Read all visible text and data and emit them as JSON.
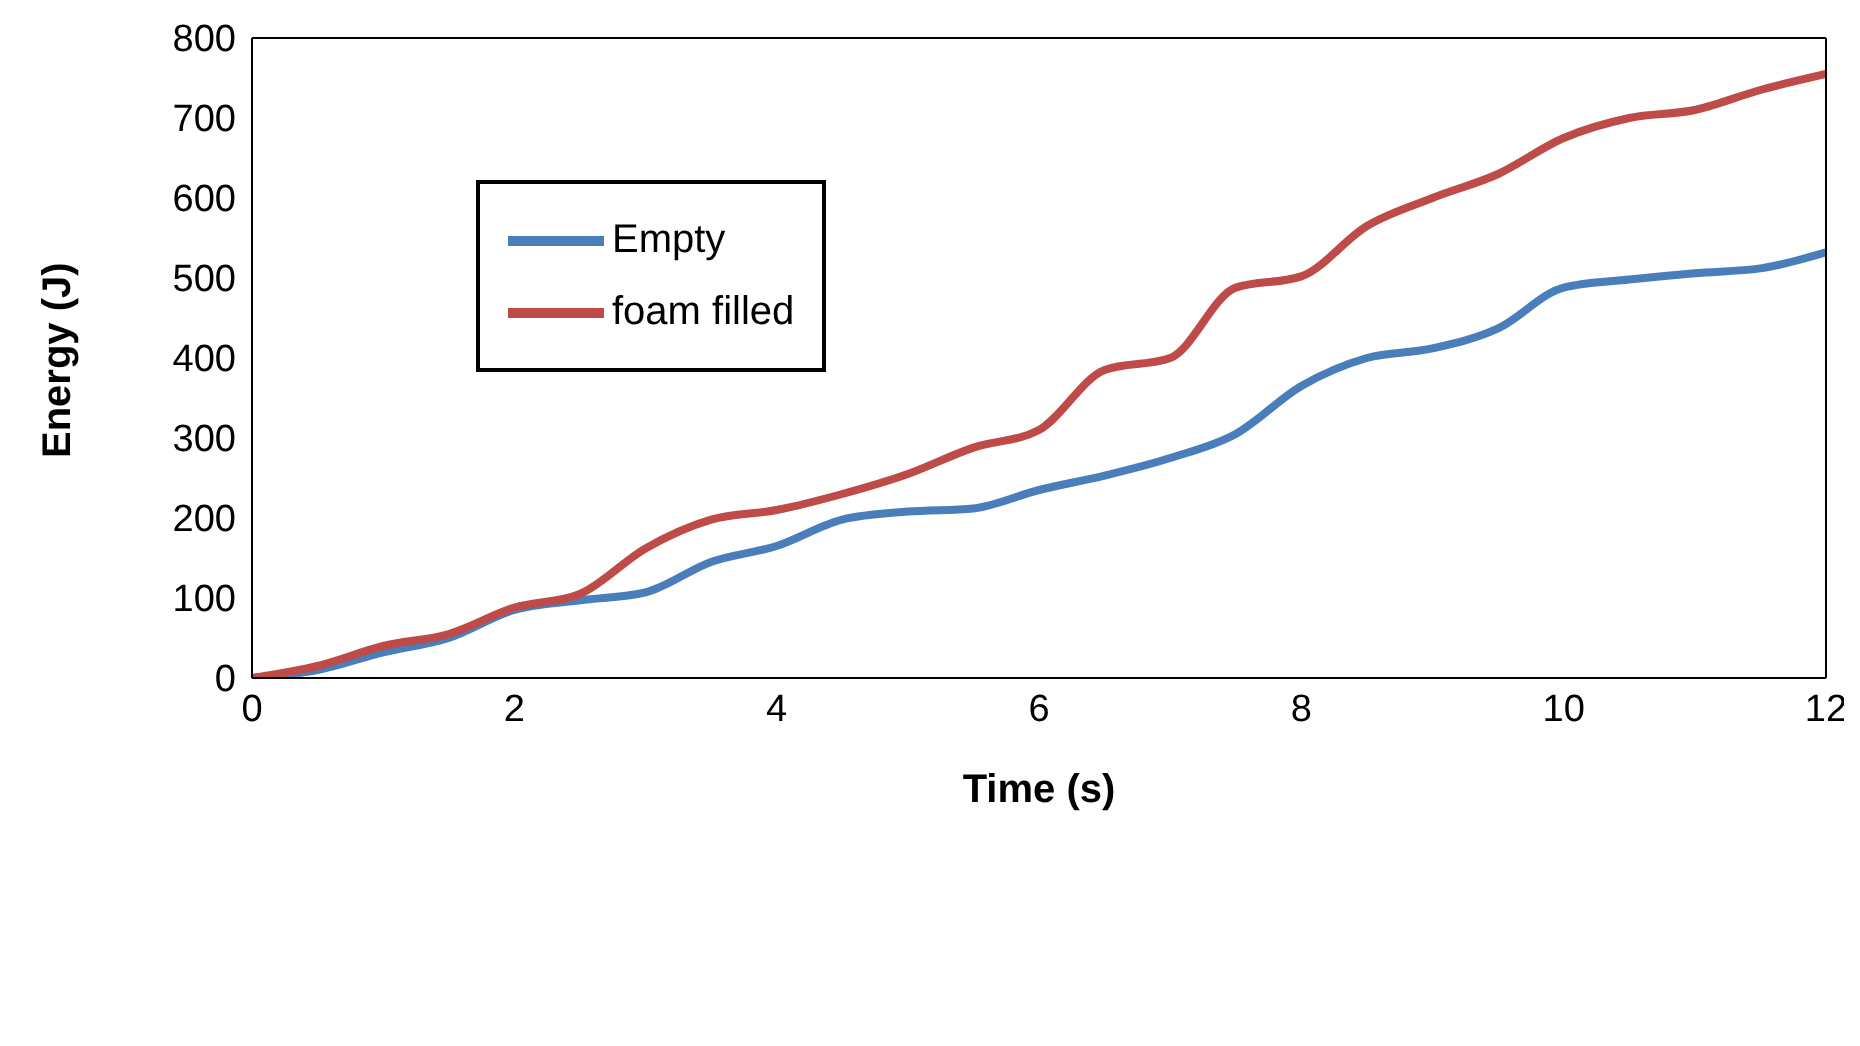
{
  "chart_data": {
    "type": "line",
    "xlabel": "Time (s)",
    "ylabel": "Energy (J)",
    "x": [
      0,
      0.5,
      1,
      1.5,
      2,
      2.5,
      3,
      3.5,
      4,
      4.5,
      5,
      5.5,
      6,
      6.5,
      7,
      7.5,
      8,
      8.5,
      9,
      9.5,
      10,
      10.5,
      11,
      11.5,
      12
    ],
    "series": [
      {
        "name": "Empty",
        "color": "#4a7ebb",
        "values": [
          0,
          10,
          32,
          50,
          85,
          97,
          107,
          145,
          165,
          198,
          208,
          212,
          235,
          253,
          275,
          305,
          365,
          400,
          412,
          437,
          488,
          498,
          506,
          512,
          532
        ]
      },
      {
        "name": "foam filled",
        "color": "#be4b48",
        "values": [
          0,
          15,
          40,
          55,
          88,
          105,
          162,
          198,
          210,
          230,
          255,
          288,
          310,
          385,
          400,
          488,
          502,
          565,
          600,
          630,
          675,
          700,
          710,
          735,
          755
        ]
      }
    ],
    "xlim": [
      0,
      12
    ],
    "xticks": [
      0,
      2,
      4,
      6,
      8,
      10,
      12
    ],
    "ylim": [
      0,
      800
    ],
    "yticks": [
      0,
      100,
      200,
      300,
      400,
      500,
      600,
      700,
      800
    ],
    "grid": false,
    "legend": "top left",
    "marker": "none",
    "line_style": "solid"
  }
}
